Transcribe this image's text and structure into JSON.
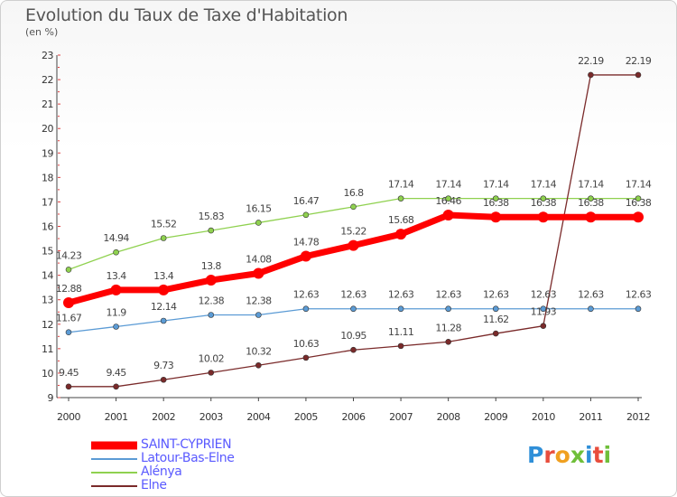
{
  "title": "Evolution du Taux de Taxe d'Habitation",
  "subtitle": "(en %)",
  "logo": {
    "text": "Proxiti",
    "letters": [
      {
        "ch": "P",
        "color": "#2f8fd8"
      },
      {
        "ch": "r",
        "color": "#e84d3d"
      },
      {
        "ch": "o",
        "color": "#f0a020"
      },
      {
        "ch": "x",
        "color": "#6fbf3a"
      },
      {
        "ch": "i",
        "color": "#2f8fd8"
      },
      {
        "ch": "t",
        "color": "#e84d3d"
      },
      {
        "ch": "i",
        "color": "#6fbf3a"
      }
    ]
  },
  "chart_data": {
    "type": "line",
    "title": "Evolution du Taux de Taxe d'Habitation",
    "subtitle": "(en %)",
    "xlabel": "",
    "ylabel": "",
    "x": [
      "2000",
      "2001",
      "2002",
      "2003",
      "2004",
      "2005",
      "2006",
      "2007",
      "2008",
      "2009",
      "2010",
      "2011",
      "2012"
    ],
    "ylim": [
      9,
      23
    ],
    "yticks": [
      9,
      10,
      11,
      12,
      13,
      14,
      15,
      16,
      17,
      18,
      19,
      20,
      21,
      22,
      23
    ],
    "grid": false,
    "legend_position": "bottom-left",
    "series": [
      {
        "name": "SAINT-CYPRIEN",
        "color": "#ff0000",
        "style": "thick",
        "values": [
          12.88,
          13.4,
          13.4,
          13.8,
          14.08,
          14.78,
          15.22,
          15.68,
          16.46,
          16.38,
          16.38,
          16.38,
          16.38
        ],
        "labels": [
          "12.88",
          "13.4",
          "13.4",
          "13.8",
          "14.08",
          "14.78",
          "15.22",
          "15.68",
          "16.46",
          "16.38",
          "16.38",
          "16.38",
          "16.38"
        ]
      },
      {
        "name": "Latour-Bas-Elne",
        "color": "#5b9bd5",
        "style": "thin",
        "values": [
          11.67,
          11.9,
          12.14,
          12.38,
          12.38,
          12.63,
          12.63,
          12.63,
          12.63,
          12.63,
          12.63,
          12.63,
          12.63
        ],
        "labels": [
          "11.67",
          "11.9",
          "12.14",
          "12.38",
          "12.38",
          "12.63",
          "12.63",
          "12.63",
          "12.63",
          "12.63",
          "12.63",
          "12.63",
          "12.63"
        ]
      },
      {
        "name": "Alénya",
        "color": "#8fd14f",
        "style": "thin",
        "values": [
          14.23,
          14.94,
          15.52,
          15.83,
          16.15,
          16.47,
          16.8,
          17.14,
          17.14,
          17.14,
          17.14,
          17.14,
          17.14
        ],
        "labels": [
          "14.23",
          "14.94",
          "15.52",
          "15.83",
          "16.15",
          "16.47",
          "16.8",
          "17.14",
          "17.14",
          "17.14",
          "17.14",
          "17.14",
          "17.14"
        ]
      },
      {
        "name": "Elne",
        "color": "#7a2a2a",
        "style": "thin",
        "values": [
          9.45,
          9.45,
          9.73,
          10.02,
          10.32,
          10.63,
          10.95,
          11.11,
          11.28,
          11.62,
          11.93,
          22.19,
          22.19
        ],
        "labels": [
          "9.45",
          "9.45",
          "9.73",
          "10.02",
          "10.32",
          "10.63",
          "10.95",
          "11.11",
          "11.28",
          "11.62",
          "11.93",
          "22.19",
          "22.19"
        ]
      }
    ]
  }
}
